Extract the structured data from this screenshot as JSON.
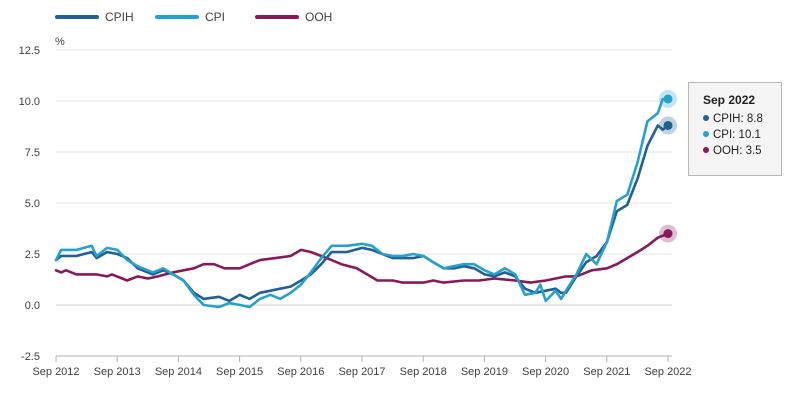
{
  "chart_data": {
    "type": "line",
    "title": "",
    "unit_label": "%",
    "xlabel": "",
    "ylabel": "%",
    "ylim": [
      -2.5,
      12.5
    ],
    "yticks": [
      "12.5",
      "10.0",
      "7.5",
      "5.0",
      "2.5",
      "0.0",
      "-2.5"
    ],
    "ytick_values": [
      12.5,
      10,
      7.5,
      5,
      2.5,
      0,
      -2.5
    ],
    "xlim": [
      2012.667,
      2022.667
    ],
    "xticks": [
      "Sep 2012",
      "Sep 2013",
      "Sep 2014",
      "Sep 2015",
      "Sep 2016",
      "Sep 2017",
      "Sep 2018",
      "Sep 2019",
      "Sep 2020",
      "Sep 2021",
      "Sep 2022"
    ],
    "xtick_values": [
      2012.667,
      2013.667,
      2014.667,
      2015.667,
      2016.667,
      2017.667,
      2018.667,
      2019.667,
      2020.667,
      2021.667,
      2022.667
    ],
    "grid": true,
    "series": [
      {
        "name": "CPIH",
        "color": "#206095",
        "points": [
          [
            2012.667,
            2.2
          ],
          [
            2012.75,
            2.4
          ],
          [
            2013.0,
            2.4
          ],
          [
            2013.25,
            2.6
          ],
          [
            2013.33,
            2.3
          ],
          [
            2013.5,
            2.6
          ],
          [
            2013.67,
            2.5
          ],
          [
            2013.83,
            2.3
          ],
          [
            2014.0,
            1.8
          ],
          [
            2014.25,
            1.5
          ],
          [
            2014.42,
            1.7
          ],
          [
            2014.58,
            1.5
          ],
          [
            2014.75,
            1.2
          ],
          [
            2014.92,
            0.6
          ],
          [
            2015.08,
            0.3
          ],
          [
            2015.33,
            0.4
          ],
          [
            2015.5,
            0.2
          ],
          [
            2015.67,
            0.5
          ],
          [
            2015.83,
            0.3
          ],
          [
            2016.0,
            0.6
          ],
          [
            2016.17,
            0.7
          ],
          [
            2016.33,
            0.8
          ],
          [
            2016.5,
            0.9
          ],
          [
            2016.67,
            1.2
          ],
          [
            2016.83,
            1.5
          ],
          [
            2017.0,
            2.0
          ],
          [
            2017.17,
            2.6
          ],
          [
            2017.42,
            2.6
          ],
          [
            2017.67,
            2.8
          ],
          [
            2017.83,
            2.7
          ],
          [
            2018.0,
            2.5
          ],
          [
            2018.17,
            2.3
          ],
          [
            2018.33,
            2.3
          ],
          [
            2018.5,
            2.3
          ],
          [
            2018.67,
            2.4
          ],
          [
            2018.83,
            2.1
          ],
          [
            2019.0,
            1.8
          ],
          [
            2019.17,
            1.8
          ],
          [
            2019.33,
            1.9
          ],
          [
            2019.5,
            1.8
          ],
          [
            2019.67,
            1.5
          ],
          [
            2019.83,
            1.4
          ],
          [
            2020.0,
            1.6
          ],
          [
            2020.17,
            1.4
          ],
          [
            2020.33,
            0.8
          ],
          [
            2020.5,
            0.6
          ],
          [
            2020.67,
            0.7
          ],
          [
            2020.83,
            0.8
          ],
          [
            2020.92,
            0.6
          ],
          [
            2021.0,
            0.6
          ],
          [
            2021.17,
            1.4
          ],
          [
            2021.33,
            2.1
          ],
          [
            2021.5,
            2.4
          ],
          [
            2021.67,
            3.1
          ],
          [
            2021.83,
            4.6
          ],
          [
            2022.0,
            4.9
          ],
          [
            2022.17,
            6.2
          ],
          [
            2022.33,
            7.8
          ],
          [
            2022.5,
            8.8
          ],
          [
            2022.58,
            8.6
          ],
          [
            2022.667,
            8.8
          ]
        ]
      },
      {
        "name": "CPI",
        "color": "#27a0cc",
        "points": [
          [
            2012.667,
            2.2
          ],
          [
            2012.75,
            2.7
          ],
          [
            2013.0,
            2.7
          ],
          [
            2013.25,
            2.9
          ],
          [
            2013.33,
            2.4
          ],
          [
            2013.5,
            2.8
          ],
          [
            2013.67,
            2.7
          ],
          [
            2013.83,
            2.2
          ],
          [
            2014.0,
            1.9
          ],
          [
            2014.25,
            1.6
          ],
          [
            2014.42,
            1.8
          ],
          [
            2014.58,
            1.5
          ],
          [
            2014.75,
            1.2
          ],
          [
            2014.92,
            0.5
          ],
          [
            2015.08,
            0.0
          ],
          [
            2015.33,
            -0.1
          ],
          [
            2015.5,
            0.1
          ],
          [
            2015.67,
            0.0
          ],
          [
            2015.83,
            -0.1
          ],
          [
            2016.0,
            0.3
          ],
          [
            2016.17,
            0.5
          ],
          [
            2016.33,
            0.3
          ],
          [
            2016.5,
            0.6
          ],
          [
            2016.67,
            1.0
          ],
          [
            2016.83,
            1.6
          ],
          [
            2017.0,
            2.3
          ],
          [
            2017.17,
            2.9
          ],
          [
            2017.42,
            2.9
          ],
          [
            2017.67,
            3.0
          ],
          [
            2017.83,
            2.9
          ],
          [
            2018.0,
            2.5
          ],
          [
            2018.17,
            2.4
          ],
          [
            2018.33,
            2.4
          ],
          [
            2018.5,
            2.5
          ],
          [
            2018.67,
            2.4
          ],
          [
            2018.83,
            2.1
          ],
          [
            2019.0,
            1.8
          ],
          [
            2019.17,
            1.9
          ],
          [
            2019.33,
            2.0
          ],
          [
            2019.5,
            2.0
          ],
          [
            2019.67,
            1.7
          ],
          [
            2019.83,
            1.5
          ],
          [
            2020.0,
            1.8
          ],
          [
            2020.17,
            1.5
          ],
          [
            2020.33,
            0.5
          ],
          [
            2020.5,
            0.6
          ],
          [
            2020.58,
            1.0
          ],
          [
            2020.67,
            0.2
          ],
          [
            2020.83,
            0.7
          ],
          [
            2020.92,
            0.3
          ],
          [
            2021.0,
            0.7
          ],
          [
            2021.17,
            1.5
          ],
          [
            2021.33,
            2.5
          ],
          [
            2021.5,
            2.0
          ],
          [
            2021.67,
            3.1
          ],
          [
            2021.83,
            5.1
          ],
          [
            2022.0,
            5.4
          ],
          [
            2022.17,
            7.0
          ],
          [
            2022.33,
            9.0
          ],
          [
            2022.5,
            9.4
          ],
          [
            2022.58,
            10.1
          ],
          [
            2022.667,
            10.1
          ]
        ]
      },
      {
        "name": "OOH",
        "color": "#871a5b",
        "points": [
          [
            2012.667,
            1.7
          ],
          [
            2012.75,
            1.6
          ],
          [
            2012.83,
            1.7
          ],
          [
            2013.0,
            1.5
          ],
          [
            2013.33,
            1.5
          ],
          [
            2013.5,
            1.4
          ],
          [
            2013.58,
            1.5
          ],
          [
            2013.83,
            1.2
          ],
          [
            2014.0,
            1.4
          ],
          [
            2014.17,
            1.3
          ],
          [
            2014.33,
            1.4
          ],
          [
            2014.58,
            1.6
          ],
          [
            2014.75,
            1.7
          ],
          [
            2014.92,
            1.8
          ],
          [
            2015.08,
            2.0
          ],
          [
            2015.25,
            2.0
          ],
          [
            2015.42,
            1.8
          ],
          [
            2015.67,
            1.8
          ],
          [
            2015.83,
            2.0
          ],
          [
            2016.0,
            2.2
          ],
          [
            2016.25,
            2.3
          ],
          [
            2016.5,
            2.4
          ],
          [
            2016.67,
            2.7
          ],
          [
            2016.83,
            2.6
          ],
          [
            2017.0,
            2.4
          ],
          [
            2017.17,
            2.2
          ],
          [
            2017.33,
            2.0
          ],
          [
            2017.58,
            1.8
          ],
          [
            2017.75,
            1.5
          ],
          [
            2017.92,
            1.2
          ],
          [
            2018.17,
            1.2
          ],
          [
            2018.33,
            1.1
          ],
          [
            2018.67,
            1.1
          ],
          [
            2018.83,
            1.2
          ],
          [
            2019.0,
            1.1
          ],
          [
            2019.33,
            1.2
          ],
          [
            2019.58,
            1.2
          ],
          [
            2019.83,
            1.3
          ],
          [
            2020.17,
            1.2
          ],
          [
            2020.42,
            1.1
          ],
          [
            2020.67,
            1.2
          ],
          [
            2020.83,
            1.3
          ],
          [
            2021.0,
            1.4
          ],
          [
            2021.17,
            1.4
          ],
          [
            2021.42,
            1.7
          ],
          [
            2021.67,
            1.8
          ],
          [
            2021.83,
            2.0
          ],
          [
            2022.0,
            2.3
          ],
          [
            2022.17,
            2.6
          ],
          [
            2022.33,
            2.9
          ],
          [
            2022.5,
            3.3
          ],
          [
            2022.667,
            3.5
          ]
        ]
      }
    ]
  },
  "tooltip": {
    "title": "Sep 2022",
    "rows": [
      {
        "label": "CPIH: 8.8",
        "color": "#206095"
      },
      {
        "label": "CPI: 10.1",
        "color": "#27a0cc"
      },
      {
        "label": "OOH: 3.5",
        "color": "#871a5b"
      }
    ]
  }
}
